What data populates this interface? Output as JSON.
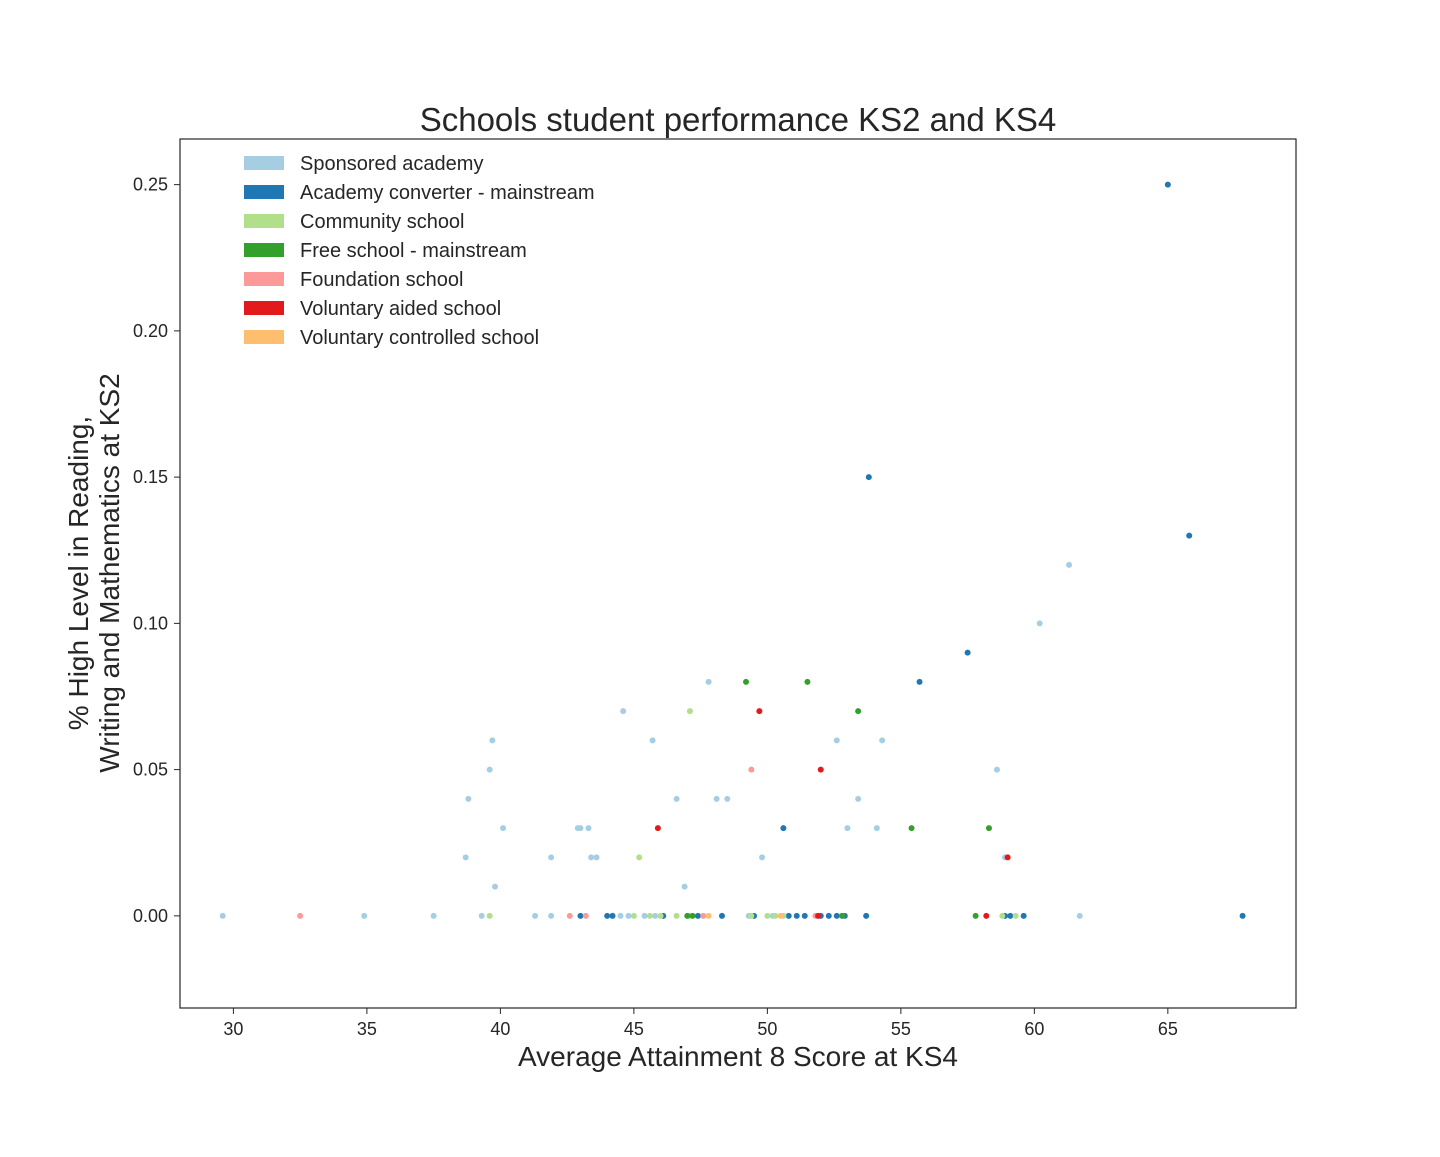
{
  "chart_data": {
    "type": "scatter",
    "title": "Schools student performance KS2 and KS4",
    "xlabel": "Average Attainment 8 Score at KS4",
    "ylabel": [
      "% High Level in Reading,",
      "Writing and Mathematics at KS2"
    ],
    "xlim": [
      28.0,
      69.8
    ],
    "ylim": [
      -0.0315,
      0.2656
    ],
    "xticks": [
      30,
      35,
      40,
      45,
      50,
      55,
      60,
      65
    ],
    "yticks": [
      0.0,
      0.05,
      0.1,
      0.15,
      0.2,
      0.25
    ],
    "ytick_labels": [
      "0.00",
      "0.05",
      "0.10",
      "0.15",
      "0.20",
      "0.25"
    ],
    "grid": false,
    "legend_position": "top-left",
    "series": [
      {
        "name": "Sponsored academy",
        "color": "#a6cee3",
        "points": [
          [
            29.6,
            0.0
          ],
          [
            34.9,
            0.0
          ],
          [
            37.5,
            0.0
          ],
          [
            39.3,
            0.0
          ],
          [
            41.3,
            0.0
          ],
          [
            41.9,
            0.0
          ],
          [
            44.2,
            0.0
          ],
          [
            44.5,
            0.0
          ],
          [
            44.8,
            0.0
          ],
          [
            45.4,
            0.0
          ],
          [
            45.8,
            0.0
          ],
          [
            49.3,
            0.0
          ],
          [
            50.2,
            0.0
          ],
          [
            61.7,
            0.0
          ],
          [
            38.7,
            0.02
          ],
          [
            39.8,
            0.01
          ],
          [
            41.9,
            0.02
          ],
          [
            43.4,
            0.02
          ],
          [
            43.6,
            0.02
          ],
          [
            49.8,
            0.02
          ],
          [
            46.9,
            0.01
          ],
          [
            40.1,
            0.03
          ],
          [
            42.9,
            0.03
          ],
          [
            43.0,
            0.03
          ],
          [
            43.3,
            0.03
          ],
          [
            53.0,
            0.03
          ],
          [
            54.1,
            0.03
          ],
          [
            38.8,
            0.04
          ],
          [
            46.6,
            0.04
          ],
          [
            48.1,
            0.04
          ],
          [
            48.5,
            0.04
          ],
          [
            53.4,
            0.04
          ],
          [
            39.6,
            0.05
          ],
          [
            58.6,
            0.05
          ],
          [
            39.7,
            0.06
          ],
          [
            45.7,
            0.06
          ],
          [
            52.6,
            0.06
          ],
          [
            54.3,
            0.06
          ],
          [
            44.6,
            0.07
          ],
          [
            47.8,
            0.08
          ],
          [
            60.2,
            0.1
          ],
          [
            61.3,
            0.12
          ],
          [
            58.9,
            0.02
          ]
        ]
      },
      {
        "name": "Academy converter - mainstream",
        "color": "#1f78b4",
        "points": [
          [
            43.0,
            0.0
          ],
          [
            44.0,
            0.0
          ],
          [
            44.2,
            0.0
          ],
          [
            46.1,
            0.0
          ],
          [
            47.4,
            0.0
          ],
          [
            48.3,
            0.0
          ],
          [
            49.5,
            0.0
          ],
          [
            50.8,
            0.0
          ],
          [
            51.1,
            0.0
          ],
          [
            51.4,
            0.0
          ],
          [
            52.0,
            0.0
          ],
          [
            52.3,
            0.0
          ],
          [
            52.6,
            0.0
          ],
          [
            52.9,
            0.0
          ],
          [
            53.7,
            0.0
          ],
          [
            58.9,
            0.0
          ],
          [
            59.1,
            0.0
          ],
          [
            59.6,
            0.0
          ],
          [
            67.8,
            0.0
          ],
          [
            50.6,
            0.03
          ],
          [
            55.7,
            0.08
          ],
          [
            57.5,
            0.09
          ],
          [
            53.8,
            0.15
          ],
          [
            65.8,
            0.13
          ],
          [
            65.0,
            0.25
          ]
        ]
      },
      {
        "name": "Community school",
        "color": "#b2df8a",
        "points": [
          [
            39.6,
            0.0
          ],
          [
            45.0,
            0.0
          ],
          [
            45.6,
            0.0
          ],
          [
            46.0,
            0.0
          ],
          [
            46.6,
            0.0
          ],
          [
            47.1,
            0.0
          ],
          [
            49.4,
            0.0
          ],
          [
            50.0,
            0.0
          ],
          [
            50.3,
            0.0
          ],
          [
            50.6,
            0.0
          ],
          [
            52.8,
            0.0
          ],
          [
            58.8,
            0.0
          ],
          [
            59.3,
            0.0
          ],
          [
            45.2,
            0.02
          ],
          [
            47.1,
            0.07
          ]
        ]
      },
      {
        "name": "Free school - mainstream",
        "color": "#33a02c",
        "points": [
          [
            47.0,
            0.0
          ],
          [
            47.2,
            0.0
          ],
          [
            52.8,
            0.0
          ],
          [
            57.8,
            0.0
          ],
          [
            55.4,
            0.03
          ],
          [
            58.3,
            0.03
          ],
          [
            53.4,
            0.07
          ],
          [
            49.2,
            0.08
          ],
          [
            51.5,
            0.08
          ]
        ]
      },
      {
        "name": "Foundation school",
        "color": "#fb9a99",
        "points": [
          [
            32.5,
            0.0
          ],
          [
            42.6,
            0.0
          ],
          [
            43.2,
            0.0
          ],
          [
            47.6,
            0.0
          ],
          [
            51.8,
            0.0
          ],
          [
            49.4,
            0.05
          ]
        ]
      },
      {
        "name": "Voluntary aided school",
        "color": "#e31a1c",
        "points": [
          [
            51.9,
            0.0
          ],
          [
            58.2,
            0.0
          ],
          [
            45.9,
            0.03
          ],
          [
            52.0,
            0.05
          ],
          [
            49.7,
            0.07
          ],
          [
            59.0,
            0.02
          ]
        ]
      },
      {
        "name": "Voluntary controlled school",
        "color": "#fdbf6f",
        "points": [
          [
            47.8,
            0.0
          ],
          [
            50.5,
            0.0
          ]
        ]
      }
    ]
  }
}
